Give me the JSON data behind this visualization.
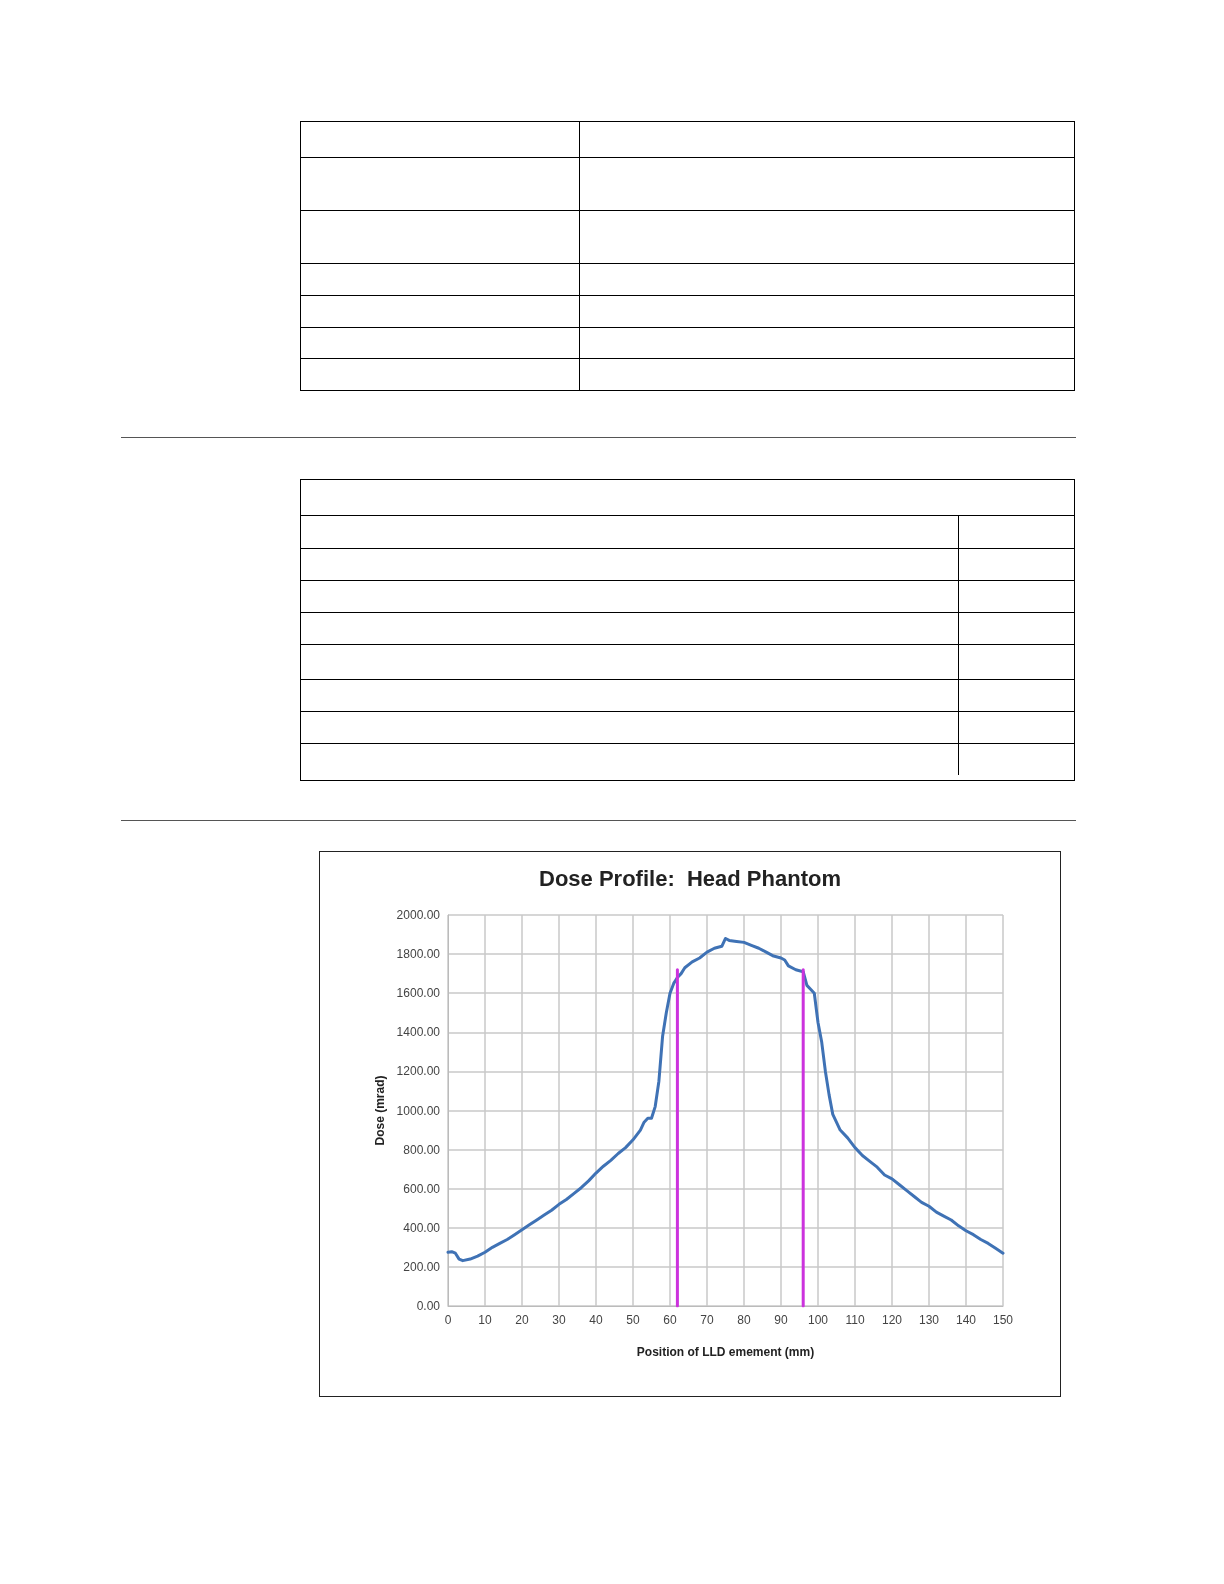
{
  "chart_data": {
    "type": "line",
    "title": "Dose Profile:  Head Phantom",
    "xlabel": "Position of LLD emement (mm)",
    "ylabel": "Dose (mrad)",
    "xlim": [
      0,
      150
    ],
    "xticks": [
      0,
      10,
      20,
      30,
      40,
      50,
      60,
      70,
      80,
      90,
      100,
      110,
      120,
      130,
      140,
      150
    ],
    "ylim": [
      0,
      2000
    ],
    "yticks": [
      {
        "value": 0,
        "label": "0.00"
      },
      {
        "value": 200,
        "label": "200.00"
      },
      {
        "value": 400,
        "label": "400.00"
      },
      {
        "value": 600,
        "label": "600.00"
      },
      {
        "value": 800,
        "label": "800.00"
      },
      {
        "value": 1000,
        "label": "1000.00"
      },
      {
        "value": 1200,
        "label": "1200.00"
      },
      {
        "value": 1400,
        "label": "1400.00"
      },
      {
        "value": 1600,
        "label": "1600.00"
      },
      {
        "value": 1800,
        "label": "1800.00"
      },
      {
        "value": 2000,
        "label": "2000.00"
      }
    ],
    "grid": true,
    "marker": "none",
    "line_style": "solid",
    "series": [
      {
        "color": "#3f72b5",
        "x": [
          0,
          1,
          2,
          3,
          4,
          6,
          8,
          10,
          12,
          14,
          16,
          18,
          20,
          22,
          24,
          26,
          28,
          30,
          32,
          34,
          36,
          38,
          40,
          42,
          44,
          46,
          48,
          50,
          52,
          53,
          54,
          55,
          56,
          57,
          58,
          59,
          60,
          61,
          62,
          63,
          64,
          66,
          68,
          70,
          72,
          74,
          75,
          76,
          78,
          80,
          82,
          84,
          86,
          88,
          90,
          91,
          92,
          94,
          96,
          97,
          98,
          99,
          100,
          101,
          102,
          103,
          104,
          106,
          108,
          110,
          112,
          114,
          116,
          118,
          120,
          122,
          124,
          126,
          128,
          130,
          132,
          134,
          136,
          138,
          140,
          142,
          144,
          146,
          148,
          150
        ],
        "values": [
          275,
          278,
          270,
          240,
          232,
          240,
          255,
          275,
          300,
          320,
          340,
          365,
          390,
          415,
          440,
          465,
          490,
          520,
          545,
          575,
          605,
          640,
          680,
          715,
          745,
          780,
          810,
          850,
          900,
          940,
          960,
          960,
          1020,
          1150,
          1380,
          1500,
          1600,
          1650,
          1680,
          1700,
          1730,
          1760,
          1780,
          1810,
          1830,
          1840,
          1880,
          1870,
          1865,
          1860,
          1845,
          1830,
          1810,
          1790,
          1780,
          1770,
          1740,
          1720,
          1710,
          1640,
          1620,
          1600,
          1450,
          1350,
          1200,
          1080,
          980,
          900,
          860,
          810,
          770,
          740,
          710,
          670,
          650,
          620,
          590,
          560,
          530,
          510,
          480,
          460,
          440,
          410,
          385,
          365,
          340,
          320,
          295,
          270
        ]
      },
      {
        "color": "#cc33dd",
        "x": [
          62,
          62
        ],
        "values": [
          0,
          1720
        ]
      },
      {
        "color": "#cc33dd",
        "x": [
          96,
          96
        ],
        "values": [
          0,
          1720
        ]
      }
    ]
  }
}
